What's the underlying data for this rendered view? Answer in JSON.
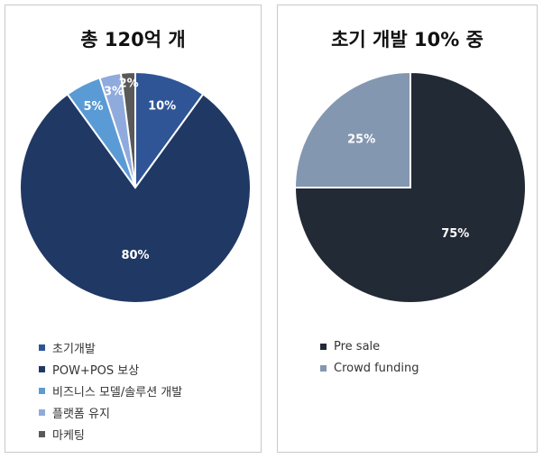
{
  "chart_data": [
    {
      "type": "pie",
      "title": "총 120억 개",
      "series": [
        {
          "name": "초기개발",
          "value": 10,
          "label": "10%",
          "color": "#2f5597"
        },
        {
          "name": "POW+POS 보상",
          "value": 80,
          "label": "80%",
          "color": "#203864"
        },
        {
          "name": "비즈니스 모델/솔루션 개발",
          "value": 5,
          "label": "5%",
          "color": "#5b9bd5"
        },
        {
          "name": "플랫폼 유지",
          "value": 3,
          "label": "3%",
          "color": "#8faadc"
        },
        {
          "name": "마케팅",
          "value": 2,
          "label": "2%",
          "color": "#595959"
        }
      ],
      "legend_position": "bottom"
    },
    {
      "type": "pie",
      "title": "초기 개발 10% 중",
      "series": [
        {
          "name": "Pre sale",
          "value": 75,
          "label": "75%",
          "color": "#222a35"
        },
        {
          "name": "Crowd funding",
          "value": 25,
          "label": "25%",
          "color": "#8497b0"
        }
      ],
      "legend_position": "bottom"
    }
  ]
}
